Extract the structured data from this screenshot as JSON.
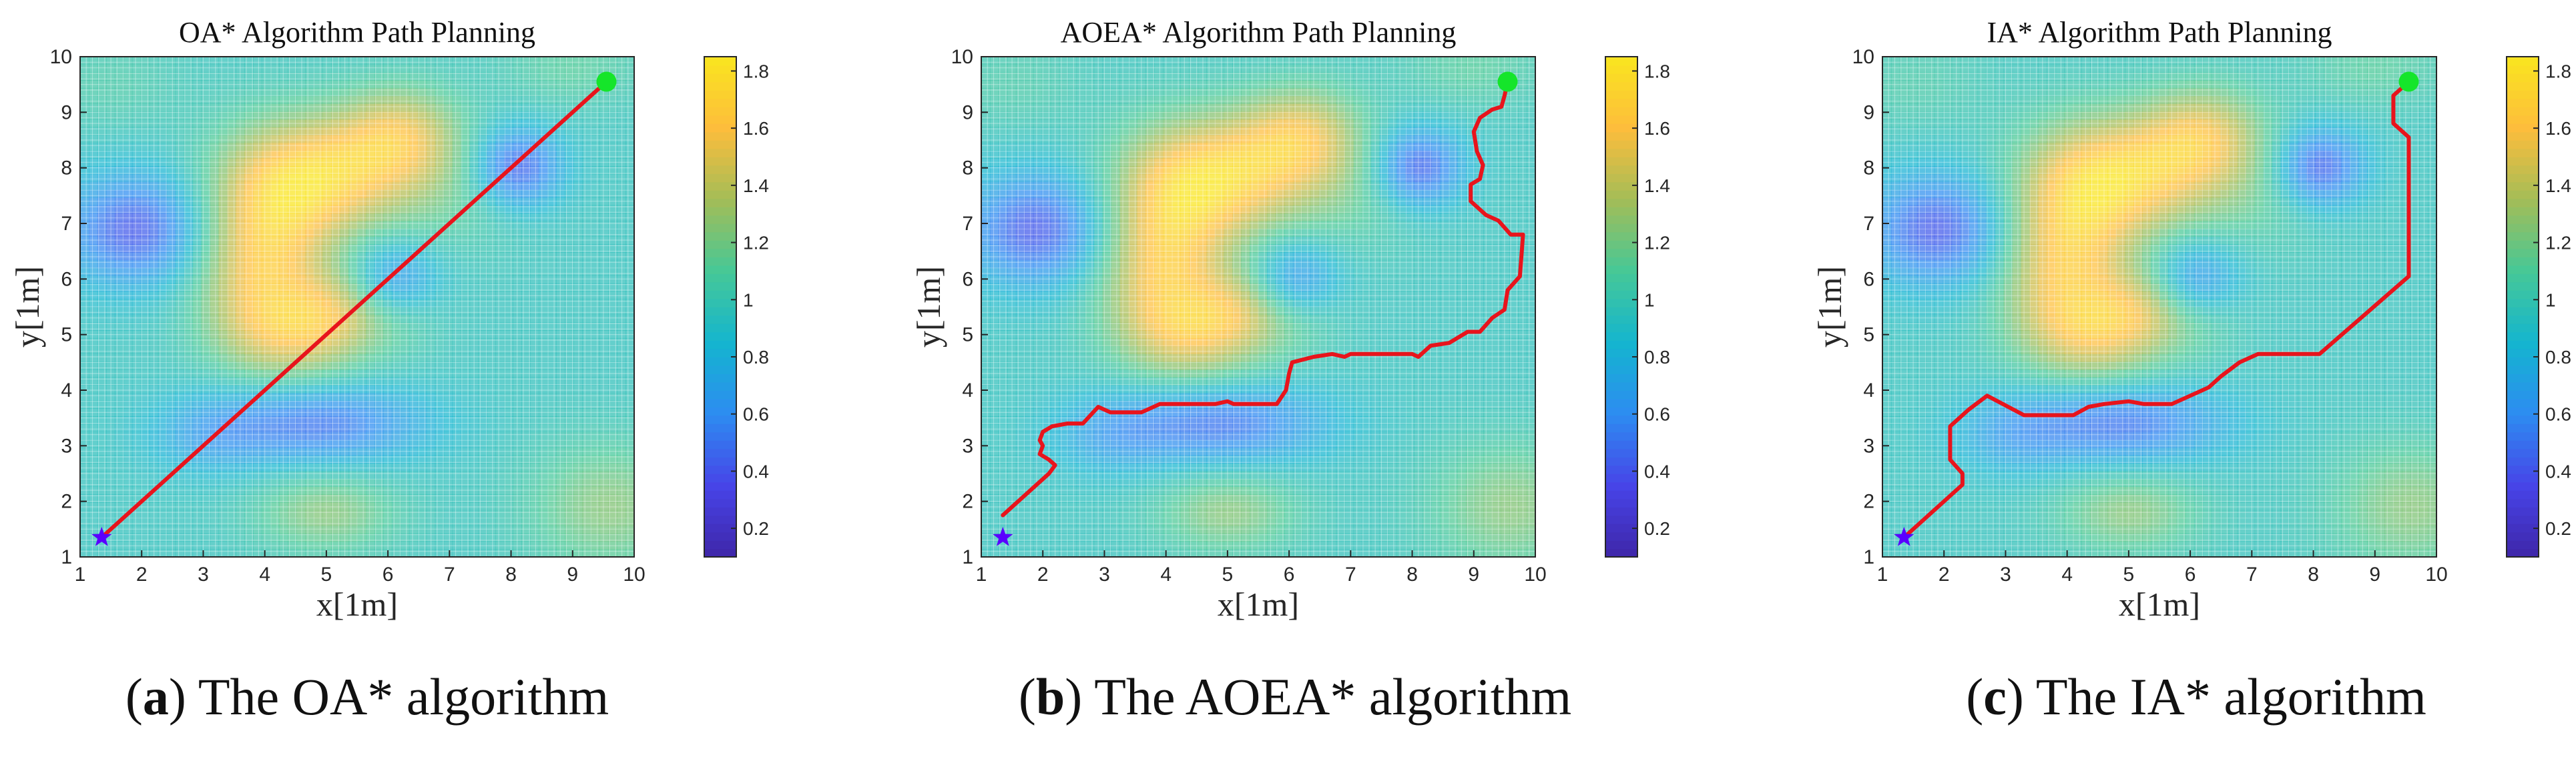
{
  "figure": {
    "colormap": [
      "#3e26a8",
      "#4744e8",
      "#2d8cf1",
      "#14b5cf",
      "#46c897",
      "#a3bd57",
      "#fdbd3c",
      "#f9e51f"
    ]
  },
  "chart_data": [
    {
      "type": "heatmap",
      "title": "OA* Algorithm Path Planning",
      "xlabel": "x[1m]",
      "ylabel": "y[1m]",
      "xlim": [
        1,
        10
      ],
      "ylim": [
        1,
        10
      ],
      "xticks": [
        "1",
        "2",
        "3",
        "4",
        "5",
        "6",
        "7",
        "8",
        "9",
        "10"
      ],
      "yticks": [
        "1",
        "2",
        "3",
        "4",
        "5",
        "6",
        "7",
        "8",
        "9",
        "10"
      ],
      "colorbar": {
        "min": 0.1,
        "max": 1.85,
        "ticks": [
          0.2,
          0.4,
          0.6,
          0.8,
          1,
          1.2,
          1.4,
          1.6,
          1.8
        ],
        "tick_labels": [
          "0.2",
          "0.4",
          "0.6",
          "0.8",
          "1",
          "1.2",
          "1.4",
          "1.6",
          "1.8"
        ]
      },
      "start": [
        1.35,
        1.35
      ],
      "goal": [
        9.55,
        9.55
      ],
      "path_color": "#e8141c",
      "start_color": "#5a00ff",
      "goal_color": "#15e52a",
      "path": [
        [
          1.35,
          1.35
        ],
        [
          9.55,
          9.55
        ]
      ],
      "caption": {
        "letter": "a",
        "text": ") The OA* algorithm",
        "open": "("
      }
    },
    {
      "type": "heatmap",
      "title": "AOEA* Algorithm Path Planning",
      "xlabel": "x[1m]",
      "ylabel": "y[1m]",
      "xlim": [
        1,
        10
      ],
      "ylim": [
        1,
        10
      ],
      "xticks": [
        "1",
        "2",
        "3",
        "4",
        "5",
        "6",
        "7",
        "8",
        "9",
        "10"
      ],
      "yticks": [
        "1",
        "2",
        "3",
        "4",
        "5",
        "6",
        "7",
        "8",
        "9",
        "10"
      ],
      "colorbar": {
        "min": 0.1,
        "max": 1.85,
        "ticks": [
          0.2,
          0.4,
          0.6,
          0.8,
          1,
          1.2,
          1.4,
          1.6,
          1.8
        ],
        "tick_labels": [
          "0.2",
          "0.4",
          "0.6",
          "0.8",
          "1",
          "1.2",
          "1.4",
          "1.6",
          "1.8"
        ]
      },
      "start": [
        1.35,
        1.35
      ],
      "goal": [
        9.55,
        9.55
      ],
      "path_color": "#e8141c",
      "start_color": "#5a00ff",
      "goal_color": "#15e52a",
      "path": [
        [
          1.35,
          1.75
        ],
        [
          1.5,
          1.9
        ],
        [
          1.8,
          2.2
        ],
        [
          2.1,
          2.5
        ],
        [
          2.2,
          2.65
        ],
        [
          2.1,
          2.75
        ],
        [
          1.95,
          2.85
        ],
        [
          2.0,
          3.0
        ],
        [
          1.95,
          3.1
        ],
        [
          2.0,
          3.25
        ],
        [
          2.15,
          3.35
        ],
        [
          2.4,
          3.4
        ],
        [
          2.65,
          3.4
        ],
        [
          2.9,
          3.7
        ],
        [
          3.1,
          3.6
        ],
        [
          3.6,
          3.6
        ],
        [
          3.9,
          3.75
        ],
        [
          4.8,
          3.75
        ],
        [
          5.0,
          3.8
        ],
        [
          5.1,
          3.75
        ],
        [
          5.8,
          3.75
        ],
        [
          5.95,
          4.0
        ],
        [
          6.0,
          4.3
        ],
        [
          6.05,
          4.5
        ],
        [
          6.4,
          4.6
        ],
        [
          6.7,
          4.65
        ],
        [
          6.9,
          4.6
        ],
        [
          7.0,
          4.65
        ],
        [
          8.0,
          4.65
        ],
        [
          8.1,
          4.6
        ],
        [
          8.3,
          4.8
        ],
        [
          8.6,
          4.85
        ],
        [
          8.9,
          5.05
        ],
        [
          9.1,
          5.05
        ],
        [
          9.3,
          5.3
        ],
        [
          9.5,
          5.45
        ],
        [
          9.55,
          5.8
        ],
        [
          9.75,
          6.05
        ],
        [
          9.8,
          6.8
        ],
        [
          9.6,
          6.8
        ],
        [
          9.4,
          7.05
        ],
        [
          9.2,
          7.15
        ],
        [
          8.95,
          7.4
        ],
        [
          8.95,
          7.7
        ],
        [
          9.1,
          7.8
        ],
        [
          9.15,
          8.05
        ],
        [
          9.05,
          8.3
        ],
        [
          9.0,
          8.65
        ],
        [
          9.1,
          8.9
        ],
        [
          9.3,
          9.05
        ],
        [
          9.45,
          9.1
        ],
        [
          9.5,
          9.3
        ],
        [
          9.55,
          9.55
        ]
      ],
      "caption": {
        "letter": "b",
        "text": ") The AOEA* algorithm",
        "open": "("
      }
    },
    {
      "type": "heatmap",
      "title": "IA* Algorithm Path Planning",
      "xlabel": "x[1m]",
      "ylabel": "y[1m]",
      "xlim": [
        1,
        10
      ],
      "ylim": [
        1,
        10
      ],
      "xticks": [
        "1",
        "2",
        "3",
        "4",
        "5",
        "6",
        "7",
        "8",
        "9",
        "10"
      ],
      "yticks": [
        "1",
        "2",
        "3",
        "4",
        "5",
        "6",
        "7",
        "8",
        "9",
        "10"
      ],
      "colorbar": {
        "min": 0.1,
        "max": 1.85,
        "ticks": [
          0.2,
          0.4,
          0.6,
          0.8,
          1,
          1.2,
          1.4,
          1.6,
          1.8
        ],
        "tick_labels": [
          "0.2",
          "0.4",
          "0.6",
          "0.8",
          "1",
          "1.2",
          "1.4",
          "1.6",
          "1.8"
        ]
      },
      "start": [
        1.35,
        1.35
      ],
      "goal": [
        9.55,
        9.55
      ],
      "path_color": "#e8141c",
      "start_color": "#5a00ff",
      "goal_color": "#15e52a",
      "path": [
        [
          1.35,
          1.35
        ],
        [
          2.3,
          2.3
        ],
        [
          2.3,
          2.5
        ],
        [
          2.1,
          2.75
        ],
        [
          2.1,
          3.35
        ],
        [
          2.4,
          3.65
        ],
        [
          2.7,
          3.9
        ],
        [
          3.3,
          3.55
        ],
        [
          4.1,
          3.55
        ],
        [
          4.35,
          3.7
        ],
        [
          4.6,
          3.75
        ],
        [
          5.0,
          3.8
        ],
        [
          5.25,
          3.75
        ],
        [
          5.7,
          3.75
        ],
        [
          6.1,
          3.95
        ],
        [
          6.3,
          4.05
        ],
        [
          6.5,
          4.25
        ],
        [
          6.8,
          4.5
        ],
        [
          7.0,
          4.6
        ],
        [
          7.1,
          4.65
        ],
        [
          8.1,
          4.65
        ],
        [
          9.55,
          6.05
        ],
        [
          9.55,
          8.55
        ],
        [
          9.3,
          8.8
        ],
        [
          9.3,
          9.3
        ],
        [
          9.55,
          9.55
        ]
      ],
      "caption": {
        "letter": "c",
        "text": ") The IA* algorithm",
        "open": "("
      }
    }
  ]
}
